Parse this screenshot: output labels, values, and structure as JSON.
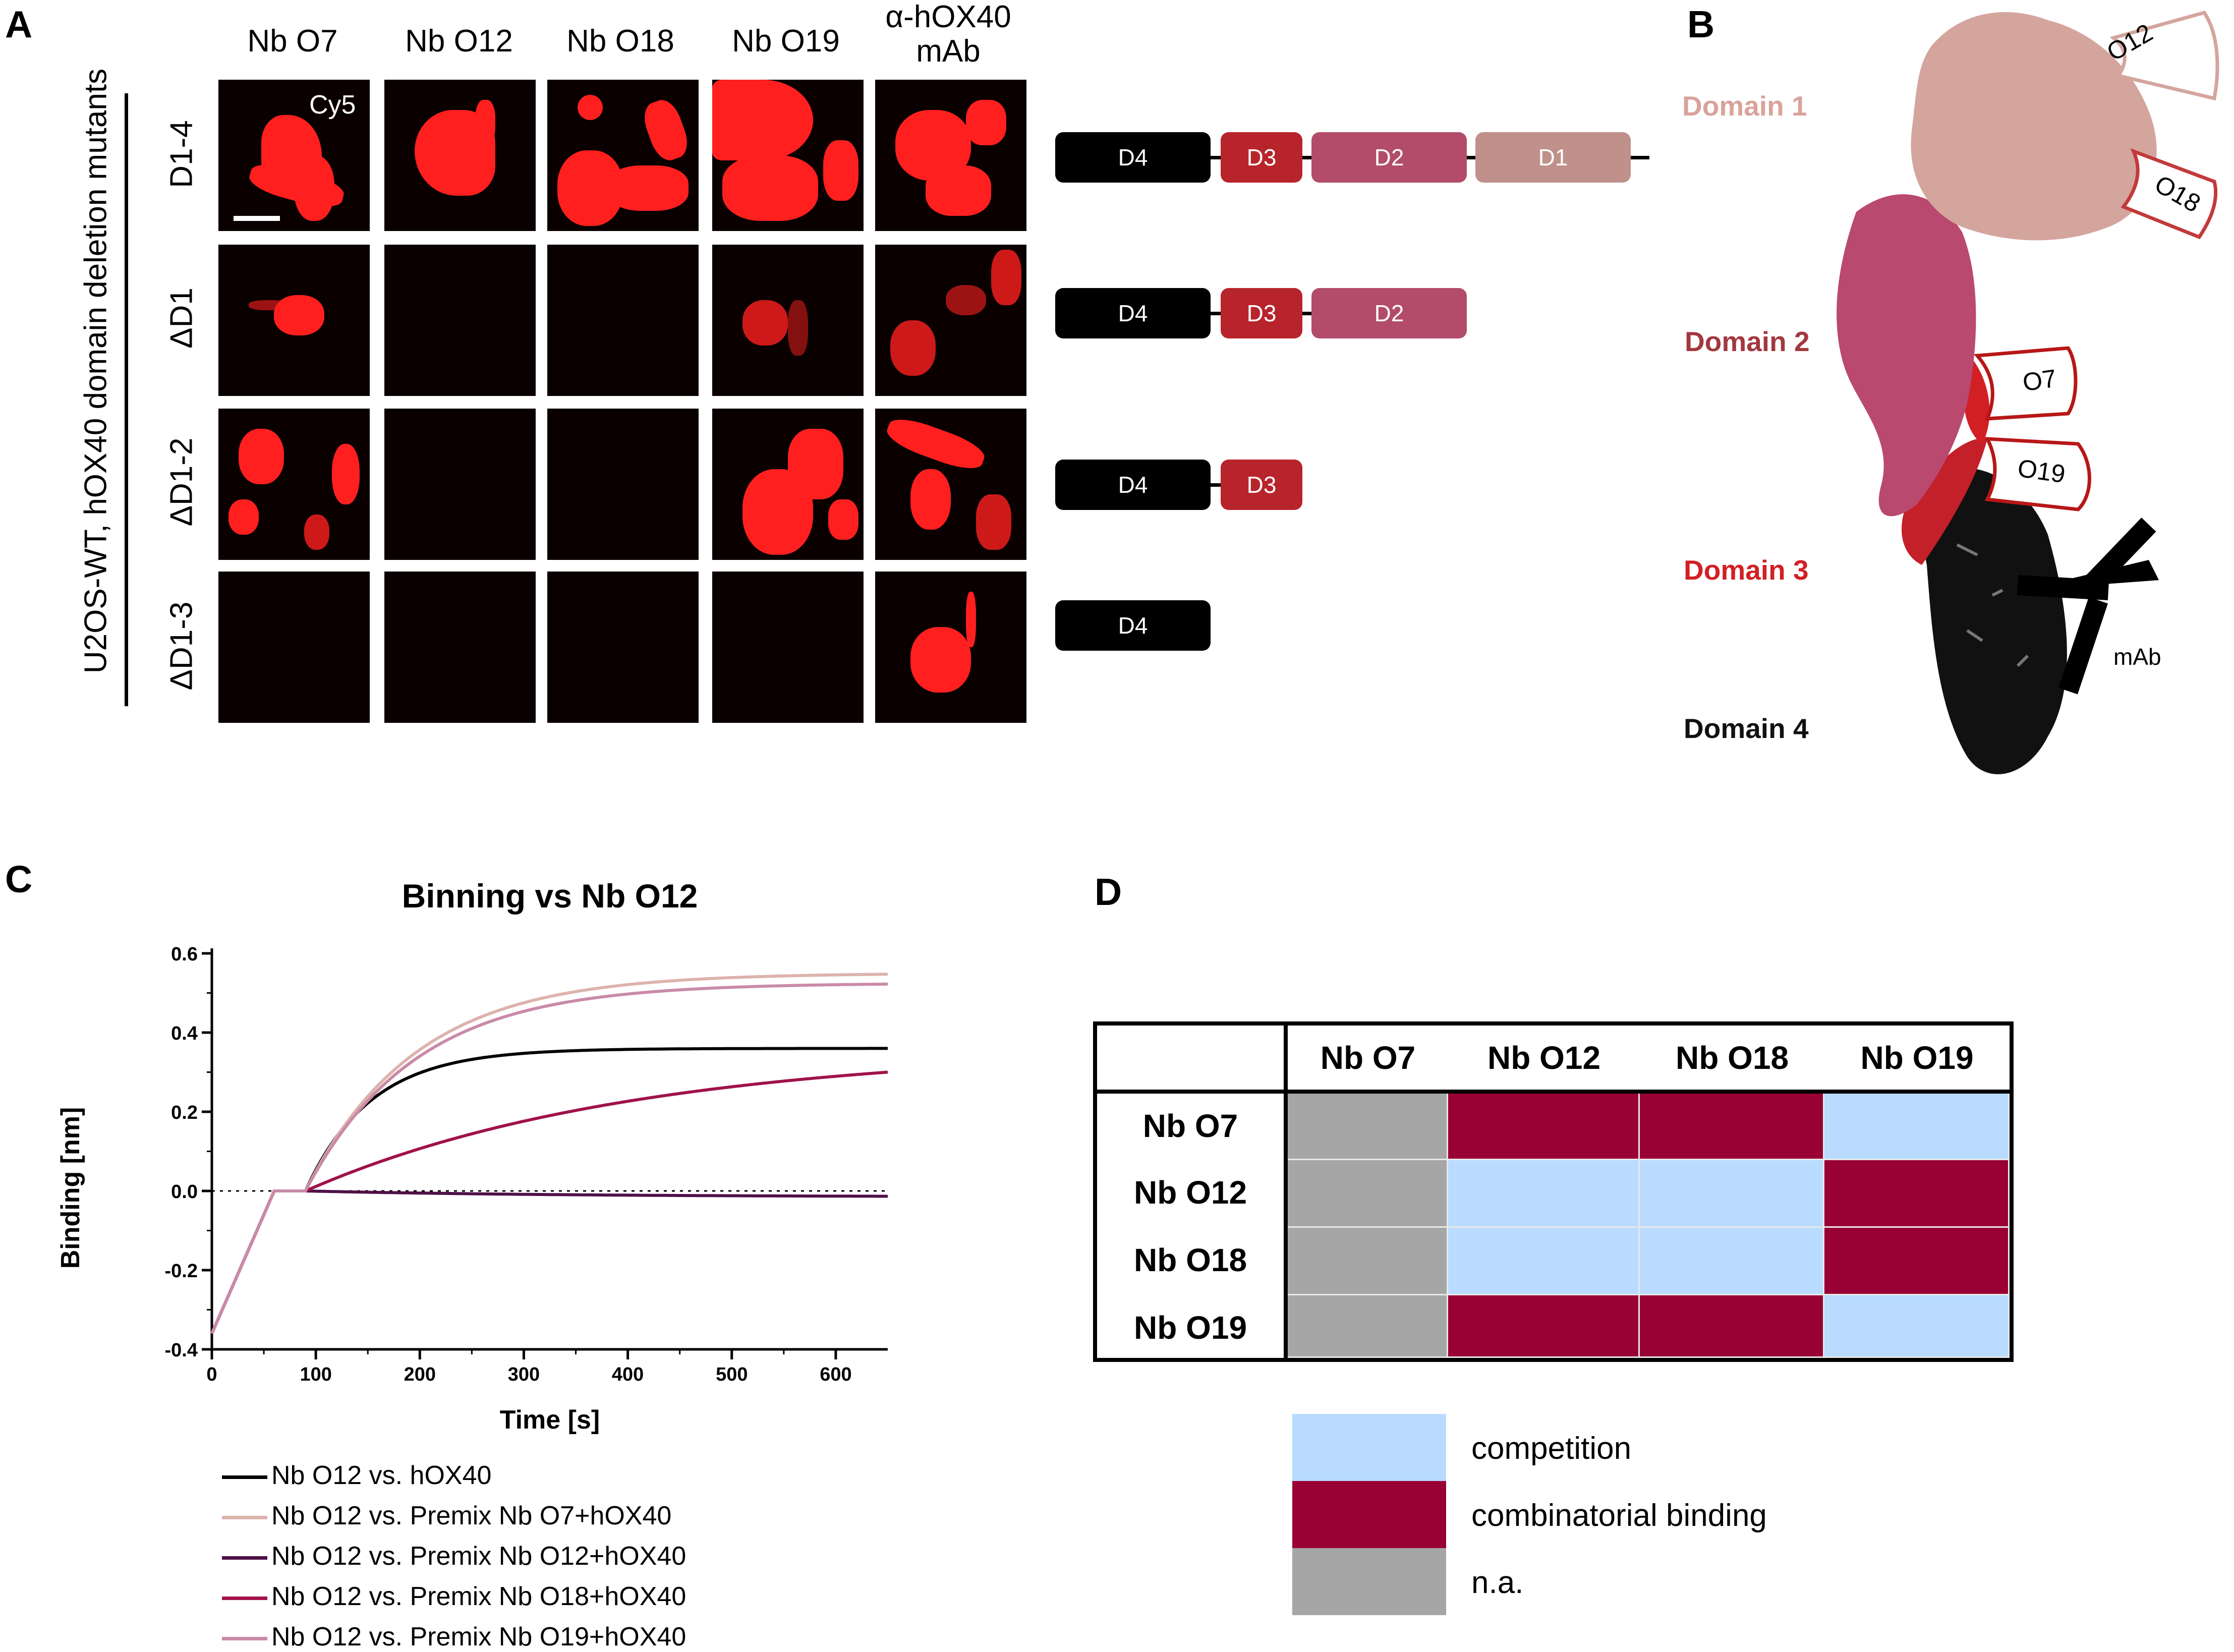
{
  "panels": {
    "a": "A",
    "b": "B",
    "c": "C",
    "d": "D"
  },
  "panel_a": {
    "y_axis_label": "U2OS-WT, hOX40 domain deletion mutants",
    "columns": [
      "Nb O7",
      "Nb O12",
      "Nb O18",
      "Nb O19",
      "α-hOX40\nmAb"
    ],
    "rows": [
      "D1-4",
      "ΔD1",
      "ΔD1-2",
      "ΔD1-3"
    ],
    "channel_label": "Cy5",
    "signal_matrix": [
      [
        "high",
        "high",
        "high",
        "high",
        "high"
      ],
      [
        "high",
        "none",
        "none",
        "medium",
        "medium"
      ],
      [
        "high",
        "none",
        "none",
        "high",
        "high"
      ],
      [
        "none",
        "none",
        "none",
        "none",
        "high"
      ]
    ],
    "constructs": [
      [
        "D4",
        "D3",
        "D2",
        "D1"
      ],
      [
        "D4",
        "D3",
        "D2"
      ],
      [
        "D4",
        "D3"
      ],
      [
        "D4"
      ]
    ],
    "construct_colors": {
      "D4": "#000000",
      "D3": "#b8242b",
      "D2": "#b24c6a",
      "D1": "#c0908a"
    }
  },
  "panel_b": {
    "domains": [
      {
        "label": "Domain 1",
        "color": "#d9a29b"
      },
      {
        "label": "Domain 2",
        "color": "#a2383f"
      },
      {
        "label": "Domain 3",
        "color": "#d21f24"
      },
      {
        "label": "Domain 4",
        "color": "#111111"
      }
    ],
    "epitope_tags": [
      "O12",
      "O18",
      "O7",
      "O19"
    ],
    "antibody_label": "mAb"
  },
  "chart_data": {
    "type": "line",
    "title": "Binning vs Nb O12",
    "xlabel": "Time [s]",
    "ylabel": "Binding [nm]",
    "xlim": [
      0,
      650
    ],
    "ylim": [
      -0.4,
      0.6
    ],
    "xticks": [
      0,
      100,
      200,
      300,
      400,
      500,
      600
    ],
    "yticks": [
      -0.4,
      -0.2,
      0.0,
      0.2,
      0.4,
      0.6
    ],
    "baseline": 0.0,
    "series": [
      {
        "name": "Nb O12 vs. hOX40",
        "color": "#000000",
        "plateau": 0.36,
        "k": 0.016
      },
      {
        "name": "Nb O12 vs. Premix Nb O7+hOX40",
        "color": "#dcb3ac",
        "plateau": 0.55,
        "k": 0.0095
      },
      {
        "name": "Nb O12 vs. Premix Nb O12+hOX40",
        "color": "#4e1046",
        "plateau": -0.015,
        "k": 0.004
      },
      {
        "name": "Nb O12 vs. Premix Nb O18+hOX40",
        "color": "#a0124a",
        "plateau": 0.36,
        "k": 0.0032
      },
      {
        "name": "Nb O12 vs. Premix Nb O19+hOX40",
        "color": "#c98aa8",
        "plateau": 0.525,
        "k": 0.0095
      }
    ]
  },
  "panel_d": {
    "headers": [
      "Nb O7",
      "Nb O12",
      "Nb O18",
      "Nb O19"
    ],
    "rows": [
      {
        "label": "Nb O7",
        "cells": [
          "n.a.",
          "combinatorial binding",
          "combinatorial binding",
          "competition"
        ]
      },
      {
        "label": "Nb O12",
        "cells": [
          "n.a.",
          "competition",
          "competition",
          "combinatorial binding"
        ]
      },
      {
        "label": "Nb O18",
        "cells": [
          "n.a.",
          "competition",
          "competition",
          "combinatorial binding"
        ]
      },
      {
        "label": "Nb O19",
        "cells": [
          "n.a.",
          "combinatorial binding",
          "combinatorial binding",
          "competition"
        ]
      }
    ],
    "legend": [
      {
        "label": "competition",
        "color": "#b9dbff"
      },
      {
        "label": "combinatorial binding",
        "color": "#990033"
      },
      {
        "label": "n.a.",
        "color": "#a6a6a6"
      }
    ]
  }
}
